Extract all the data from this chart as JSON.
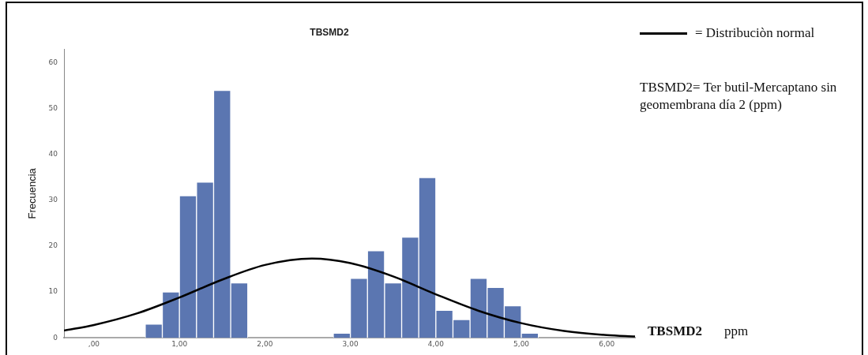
{
  "chart_data": {
    "type": "histogram",
    "title": "TBSMD2",
    "xlabel": "TBSMD2 ppm",
    "ylabel": "Frecuencia",
    "bins": [
      0.6,
      0.8,
      1.0,
      1.2,
      1.4,
      1.6,
      1.8,
      2.0,
      2.2,
      2.4,
      2.6,
      2.8,
      3.0,
      3.2,
      3.4,
      3.6,
      3.8,
      4.0,
      4.2,
      4.4,
      4.6,
      4.8,
      5.0,
      5.2
    ],
    "values": [
      3,
      10,
      31,
      34,
      54,
      12,
      0,
      0,
      0,
      0,
      0,
      1,
      13,
      19,
      12,
      22,
      35,
      6,
      4,
      13,
      11,
      7,
      1
    ],
    "color": "#5b76b1",
    "series": [
      {
        "name": "= Distribuciòn normal",
        "type": "line",
        "color": "#000000",
        "x": [
          -0.35,
          0,
          0.5,
          1,
          1.5,
          2,
          2.55,
          3,
          3.5,
          4,
          4.5,
          5,
          5.5,
          6,
          6.33
        ],
        "values": [
          1.6,
          2.8,
          5.3,
          8.8,
          12.7,
          15.9,
          17.3,
          16.3,
          13.4,
          9.5,
          5.9,
          3.2,
          1.5,
          0.6,
          0.3
        ]
      }
    ],
    "xlim": [
      -0.35,
      6.33
    ],
    "xticks": [
      {
        "value": 0,
        "label": ",00"
      },
      {
        "value": 1,
        "label": "1,00"
      },
      {
        "value": 2,
        "label": "2,00"
      },
      {
        "value": 3,
        "label": "3,00"
      },
      {
        "value": 4,
        "label": "4,00"
      },
      {
        "value": 5,
        "label": "5,00"
      },
      {
        "value": 6,
        "label": "6,00"
      }
    ],
    "ylim": [
      0,
      63
    ],
    "yticks": [
      0,
      10,
      20,
      30,
      40,
      50,
      60
    ],
    "grid": false,
    "legend": "top right",
    "marker": "none",
    "line_style": "solid",
    "annotations": [
      "TBSMD2= Ter butil-Mercaptano sin geomembrana día 2 (ppm)"
    ]
  }
}
